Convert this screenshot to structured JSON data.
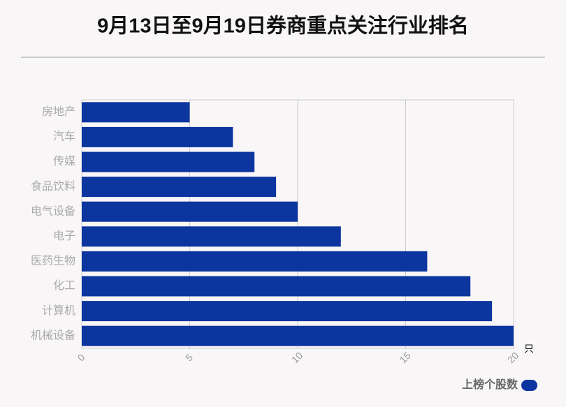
{
  "chart_data": {
    "type": "bar",
    "orientation": "horizontal",
    "title": "9月13日至9月19日券商重点关注行业排名",
    "categories": [
      "房地产",
      "汽车",
      "传媒",
      "食品饮料",
      "电气设备",
      "电子",
      "医药生物",
      "化工",
      "计算机",
      "机械设备"
    ],
    "series": [
      {
        "name": "上榜个股数",
        "color": "#0d35a0",
        "values": [
          5,
          7,
          8,
          9,
          10,
          12,
          16,
          18,
          19,
          20
        ]
      }
    ],
    "x_label": "只",
    "xlim": [
      0,
      20
    ],
    "xticks": [
      0,
      5,
      10,
      15,
      20
    ],
    "grid": true
  }
}
